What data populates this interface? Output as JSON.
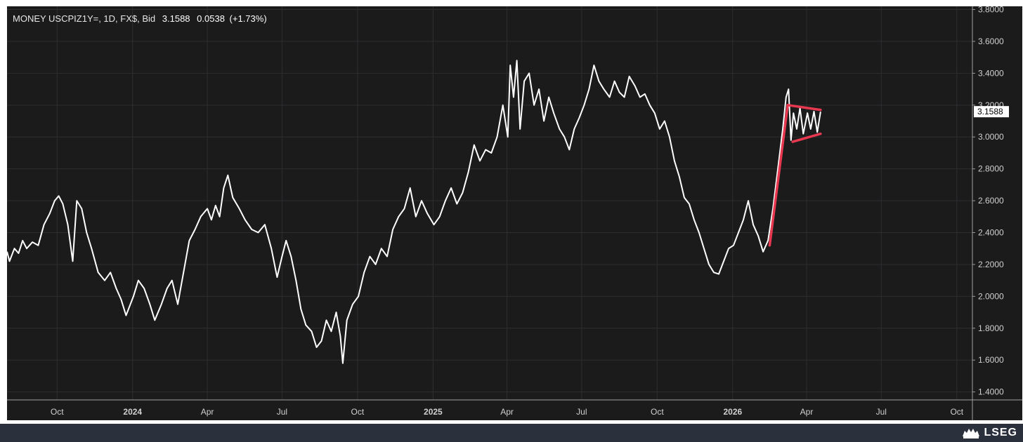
{
  "header": {
    "instrument": "MONEY USCPIZ1Y=, 1D, FX$, Bid",
    "last_value": "3.1588",
    "change": "0.0538",
    "change_pct": "(+1.73%)"
  },
  "brand": {
    "name": "LSEG",
    "logo_icon": "lseg-lion-logo-icon"
  },
  "colors": {
    "panel_background": "#1b1b1c",
    "line": "#ffffff",
    "grid": "#2e2e30",
    "annotation": "#e8384f",
    "footer": "#2b303d",
    "price_label_bg": "#ffffff"
  },
  "chart_data": {
    "type": "line",
    "title": "",
    "xlabel": "",
    "ylabel": "",
    "x_range": [
      "2023-08-01",
      "2026-10-20"
    ],
    "ylim": [
      1.35,
      3.82
    ],
    "y_ticks": [
      "1.4000",
      "1.6000",
      "1.8000",
      "2.0000",
      "2.2000",
      "2.4000",
      "2.6000",
      "2.8000",
      "3.0000",
      "3.2000",
      "3.4000",
      "3.6000",
      "3.8000"
    ],
    "x_ticks": [
      {
        "label": "Oct",
        "date": "2023-10-01",
        "bold": false
      },
      {
        "label": "2024",
        "date": "2024-01-01",
        "bold": true
      },
      {
        "label": "Apr",
        "date": "2024-04-01",
        "bold": false
      },
      {
        "label": "Jul",
        "date": "2024-07-01",
        "bold": false
      },
      {
        "label": "Oct",
        "date": "2024-10-01",
        "bold": false
      },
      {
        "label": "2025",
        "date": "2025-01-01",
        "bold": true
      },
      {
        "label": "Apr",
        "date": "2025-04-01",
        "bold": false
      },
      {
        "label": "Jul",
        "date": "2025-07-01",
        "bold": false
      },
      {
        "label": "Oct",
        "date": "2025-10-01",
        "bold": false
      },
      {
        "label": "2026",
        "date": "2026-01-01",
        "bold": true
      },
      {
        "label": "Apr",
        "date": "2026-04-01",
        "bold": false
      },
      {
        "label": "Jul",
        "date": "2026-07-01",
        "bold": false
      },
      {
        "label": "Oct",
        "date": "2026-10-01",
        "bold": false
      }
    ],
    "grid": true,
    "last_price_label": "3.1588",
    "series": [
      {
        "points": [
          [
            "2023-08-01",
            2.28
          ],
          [
            "2023-08-04",
            2.22
          ],
          [
            "2023-08-10",
            2.3
          ],
          [
            "2023-08-15",
            2.27
          ],
          [
            "2023-08-20",
            2.35
          ],
          [
            "2023-08-25",
            2.3
          ],
          [
            "2023-09-01",
            2.34
          ],
          [
            "2023-09-08",
            2.32
          ],
          [
            "2023-09-15",
            2.45
          ],
          [
            "2023-09-22",
            2.52
          ],
          [
            "2023-09-28",
            2.6
          ],
          [
            "2023-10-03",
            2.63
          ],
          [
            "2023-10-08",
            2.58
          ],
          [
            "2023-10-14",
            2.45
          ],
          [
            "2023-10-20",
            2.22
          ],
          [
            "2023-10-25",
            2.6
          ],
          [
            "2023-10-31",
            2.55
          ],
          [
            "2023-11-06",
            2.4
          ],
          [
            "2023-11-12",
            2.3
          ],
          [
            "2023-11-20",
            2.15
          ],
          [
            "2023-11-28",
            2.1
          ],
          [
            "2023-12-05",
            2.15
          ],
          [
            "2023-12-12",
            2.05
          ],
          [
            "2023-12-18",
            1.98
          ],
          [
            "2023-12-24",
            1.88
          ],
          [
            "2024-01-02",
            2.0
          ],
          [
            "2024-01-08",
            2.1
          ],
          [
            "2024-01-15",
            2.05
          ],
          [
            "2024-01-22",
            1.95
          ],
          [
            "2024-01-28",
            1.85
          ],
          [
            "2024-02-05",
            1.95
          ],
          [
            "2024-02-12",
            2.05
          ],
          [
            "2024-02-18",
            2.1
          ],
          [
            "2024-02-25",
            1.95
          ],
          [
            "2024-03-03",
            2.15
          ],
          [
            "2024-03-10",
            2.35
          ],
          [
            "2024-03-17",
            2.42
          ],
          [
            "2024-03-24",
            2.5
          ],
          [
            "2024-04-01",
            2.55
          ],
          [
            "2024-04-06",
            2.48
          ],
          [
            "2024-04-11",
            2.57
          ],
          [
            "2024-04-16",
            2.5
          ],
          [
            "2024-04-21",
            2.68
          ],
          [
            "2024-04-26",
            2.76
          ],
          [
            "2024-05-02",
            2.62
          ],
          [
            "2024-05-10",
            2.55
          ],
          [
            "2024-05-17",
            2.48
          ],
          [
            "2024-05-25",
            2.42
          ],
          [
            "2024-06-02",
            2.4
          ],
          [
            "2024-06-10",
            2.45
          ],
          [
            "2024-06-18",
            2.3
          ],
          [
            "2024-06-25",
            2.12
          ],
          [
            "2024-07-01",
            2.25
          ],
          [
            "2024-07-06",
            2.35
          ],
          [
            "2024-07-12",
            2.25
          ],
          [
            "2024-07-18",
            2.1
          ],
          [
            "2024-07-24",
            1.92
          ],
          [
            "2024-07-30",
            1.82
          ],
          [
            "2024-08-06",
            1.78
          ],
          [
            "2024-08-12",
            1.68
          ],
          [
            "2024-08-18",
            1.72
          ],
          [
            "2024-08-24",
            1.85
          ],
          [
            "2024-08-30",
            1.78
          ],
          [
            "2024-09-05",
            1.9
          ],
          [
            "2024-09-10",
            1.75
          ],
          [
            "2024-09-13",
            1.58
          ],
          [
            "2024-09-18",
            1.85
          ],
          [
            "2024-09-25",
            1.95
          ],
          [
            "2024-10-02",
            2.0
          ],
          [
            "2024-10-09",
            2.15
          ],
          [
            "2024-10-16",
            2.25
          ],
          [
            "2024-10-23",
            2.2
          ],
          [
            "2024-10-30",
            2.3
          ],
          [
            "2024-11-06",
            2.25
          ],
          [
            "2024-11-13",
            2.42
          ],
          [
            "2024-11-20",
            2.5
          ],
          [
            "2024-11-27",
            2.55
          ],
          [
            "2024-12-04",
            2.68
          ],
          [
            "2024-12-11",
            2.5
          ],
          [
            "2024-12-18",
            2.6
          ],
          [
            "2024-12-25",
            2.52
          ],
          [
            "2025-01-02",
            2.45
          ],
          [
            "2025-01-09",
            2.5
          ],
          [
            "2025-01-16",
            2.6
          ],
          [
            "2025-01-23",
            2.68
          ],
          [
            "2025-01-30",
            2.58
          ],
          [
            "2025-02-06",
            2.65
          ],
          [
            "2025-02-13",
            2.78
          ],
          [
            "2025-02-20",
            2.95
          ],
          [
            "2025-02-27",
            2.85
          ],
          [
            "2025-03-06",
            2.92
          ],
          [
            "2025-03-13",
            2.9
          ],
          [
            "2025-03-20",
            3.0
          ],
          [
            "2025-03-27",
            3.2
          ],
          [
            "2025-04-02",
            3.0
          ],
          [
            "2025-04-05",
            3.45
          ],
          [
            "2025-04-09",
            3.25
          ],
          [
            "2025-04-13",
            3.48
          ],
          [
            "2025-04-17",
            3.05
          ],
          [
            "2025-04-22",
            3.35
          ],
          [
            "2025-04-28",
            3.4
          ],
          [
            "2025-05-04",
            3.2
          ],
          [
            "2025-05-10",
            3.3
          ],
          [
            "2025-05-16",
            3.1
          ],
          [
            "2025-05-22",
            3.25
          ],
          [
            "2025-05-28",
            3.15
          ],
          [
            "2025-06-04",
            3.05
          ],
          [
            "2025-06-10",
            3.0
          ],
          [
            "2025-06-16",
            2.92
          ],
          [
            "2025-06-22",
            3.05
          ],
          [
            "2025-06-28",
            3.12
          ],
          [
            "2025-07-04",
            3.2
          ],
          [
            "2025-07-10",
            3.3
          ],
          [
            "2025-07-16",
            3.45
          ],
          [
            "2025-07-22",
            3.35
          ],
          [
            "2025-07-28",
            3.3
          ],
          [
            "2025-08-04",
            3.25
          ],
          [
            "2025-08-10",
            3.35
          ],
          [
            "2025-08-16",
            3.28
          ],
          [
            "2025-08-22",
            3.25
          ],
          [
            "2025-08-28",
            3.38
          ],
          [
            "2025-09-04",
            3.32
          ],
          [
            "2025-09-10",
            3.25
          ],
          [
            "2025-09-16",
            3.27
          ],
          [
            "2025-09-22",
            3.2
          ],
          [
            "2025-09-28",
            3.15
          ],
          [
            "2025-10-04",
            3.05
          ],
          [
            "2025-10-10",
            3.1
          ],
          [
            "2025-10-16",
            3.0
          ],
          [
            "2025-10-22",
            2.85
          ],
          [
            "2025-10-28",
            2.75
          ],
          [
            "2025-11-03",
            2.62
          ],
          [
            "2025-11-09",
            2.58
          ],
          [
            "2025-11-15",
            2.48
          ],
          [
            "2025-11-21",
            2.4
          ],
          [
            "2025-11-27",
            2.3
          ],
          [
            "2025-12-03",
            2.2
          ],
          [
            "2025-12-09",
            2.15
          ],
          [
            "2025-12-15",
            2.14
          ],
          [
            "2025-12-21",
            2.22
          ],
          [
            "2025-12-27",
            2.3
          ],
          [
            "2026-01-02",
            2.32
          ],
          [
            "2026-01-08",
            2.4
          ],
          [
            "2026-01-14",
            2.48
          ],
          [
            "2026-01-20",
            2.6
          ],
          [
            "2026-01-26",
            2.45
          ],
          [
            "2026-02-01",
            2.38
          ],
          [
            "2026-02-07",
            2.28
          ],
          [
            "2026-02-13",
            2.35
          ],
          [
            "2026-02-19",
            2.55
          ],
          [
            "2026-02-25",
            2.8
          ],
          [
            "2026-03-03",
            3.05
          ],
          [
            "2026-03-07",
            3.25
          ],
          [
            "2026-03-10",
            3.3
          ],
          [
            "2026-03-13",
            2.98
          ],
          [
            "2026-03-16",
            3.15
          ],
          [
            "2026-03-20",
            3.05
          ],
          [
            "2026-03-24",
            3.18
          ],
          [
            "2026-03-28",
            3.02
          ],
          [
            "2026-04-02",
            3.15
          ],
          [
            "2026-04-06",
            3.05
          ],
          [
            "2026-04-10",
            3.16
          ],
          [
            "2026-04-14",
            3.03
          ],
          [
            "2026-04-18",
            3.1588
          ]
        ]
      }
    ],
    "annotations": [
      {
        "from": [
          "2026-02-15",
          2.32
        ],
        "to": [
          "2026-03-09",
          3.2
        ]
      },
      {
        "from": [
          "2026-03-09",
          3.2
        ],
        "to": [
          "2026-04-18",
          3.17
        ]
      },
      {
        "from": [
          "2026-03-15",
          2.97
        ],
        "to": [
          "2026-04-18",
          3.02
        ]
      }
    ]
  }
}
